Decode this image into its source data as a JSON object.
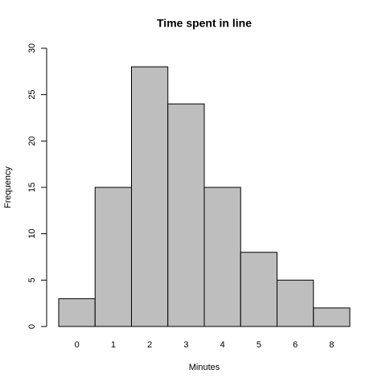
{
  "chart_data": {
    "type": "bar",
    "title": "Time spent in line",
    "x_label": "Minutes",
    "y_label": "Frequency",
    "categories": [
      "0",
      "1",
      "2",
      "3",
      "4",
      "5",
      "6",
      "8"
    ],
    "values": [
      3,
      15,
      28,
      24,
      15,
      8,
      5,
      2
    ],
    "color": "#bebebe",
    "ylim": [
      0,
      30
    ],
    "yticks": [
      0,
      5,
      10,
      15,
      20,
      25,
      30
    ],
    "grid": false
  }
}
